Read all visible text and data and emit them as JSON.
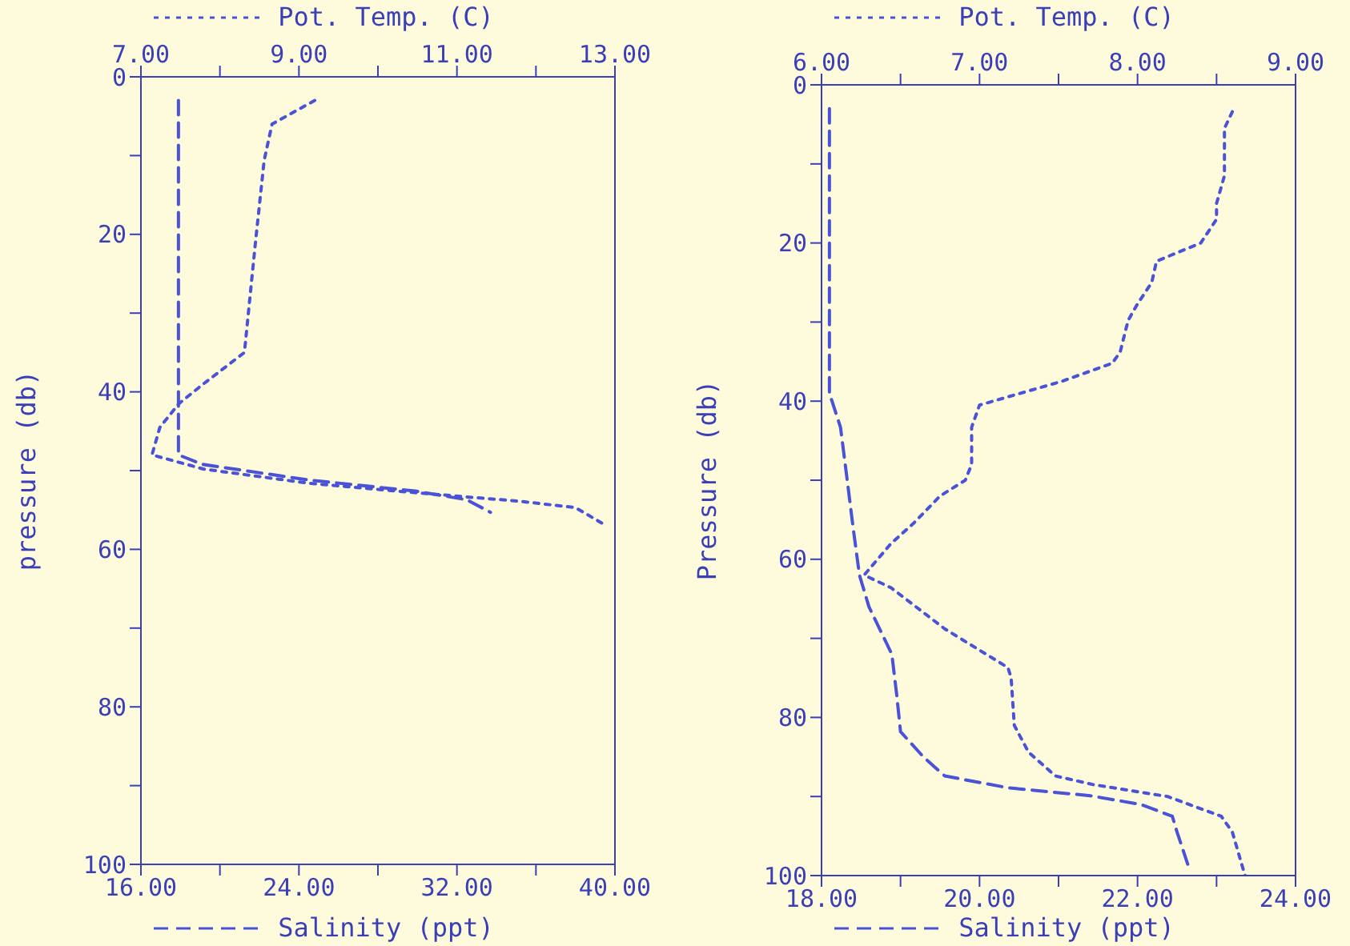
{
  "chart_data": [
    {
      "type": "line",
      "xlabel": "Salinity (ppt)",
      "x2label": "Pot. Temp. (C)",
      "ylabel": "pressure (db)",
      "xlim": [
        16,
        40
      ],
      "xticks": [
        {
          "value": 16,
          "label": "16.00"
        },
        {
          "value": 20,
          "label": null
        },
        {
          "value": 24,
          "label": "24.00"
        },
        {
          "value": 28,
          "label": null
        },
        {
          "value": 32,
          "label": "32.00"
        },
        {
          "value": 36,
          "label": null
        },
        {
          "value": 40,
          "label": "40.00"
        }
      ],
      "x2lim": [
        7,
        13
      ],
      "x2ticks": [
        {
          "value": 7,
          "label": "7.00"
        },
        {
          "value": 8,
          "label": null
        },
        {
          "value": 9,
          "label": "9.00"
        },
        {
          "value": 10,
          "label": null
        },
        {
          "value": 11,
          "label": "11.00"
        },
        {
          "value": 12,
          "label": null
        },
        {
          "value": 13,
          "label": "13.00"
        }
      ],
      "ylim": [
        100,
        0
      ],
      "yticks": [
        0,
        {
          "value": 10,
          "label": null
        },
        20,
        {
          "value": 30,
          "label": null
        },
        40,
        {
          "value": 50,
          "label": null
        },
        60,
        {
          "value": 70,
          "label": null
        },
        80,
        {
          "value": 90,
          "label": null
        },
        100
      ],
      "marker": "none",
      "series": [
        {
          "color": "#4a52d6",
          "axis": "x2",
          "line_style": "dotted",
          "x": [
            9.2,
            8.66,
            8.56,
            8.45,
            8.35,
            8.31,
            7.79,
            7.48,
            7.24,
            7.14,
            7.79,
            9.12,
            10.47,
            11.8,
            12.5,
            12.84
          ],
          "values": [
            3,
            6,
            10.6,
            21,
            31,
            35,
            39,
            41.5,
            44.5,
            48,
            49.8,
            51.6,
            52.8,
            53.9,
            54.7,
            56.7
          ]
        },
        {
          "color": "#4a52d6",
          "line_style": "dashed",
          "x": [
            17.9,
            17.9,
            17.9,
            17.9,
            19.1,
            24.5,
            29.9,
            32.5,
            33.7
          ],
          "values": [
            3,
            20,
            40,
            48,
            49.2,
            51.2,
            52.6,
            53.7,
            55.3
          ]
        }
      ]
    },
    {
      "type": "line",
      "xlabel": "Salinity (ppt)",
      "x2label": "Pot. Temp. (C)",
      "ylabel": "Pressure (db)",
      "xlim": [
        18,
        24
      ],
      "xticks": [
        {
          "value": 18,
          "label": "18.00"
        },
        {
          "value": 19,
          "label": null
        },
        {
          "value": 20,
          "label": "20.00"
        },
        {
          "value": 21,
          "label": null
        },
        {
          "value": 22,
          "label": "22.00"
        },
        {
          "value": 23,
          "label": null
        },
        {
          "value": 24,
          "label": "24.00"
        }
      ],
      "x2lim": [
        6,
        9
      ],
      "x2ticks": [
        {
          "value": 6,
          "label": "6.00"
        },
        {
          "value": 6.5,
          "label": null
        },
        {
          "value": 7,
          "label": "7.00"
        },
        {
          "value": 7.5,
          "label": null
        },
        {
          "value": 8,
          "label": "8.00"
        },
        {
          "value": 8.5,
          "label": null
        },
        {
          "value": 9,
          "label": "9.00"
        }
      ],
      "ylim": [
        100,
        0
      ],
      "yticks": [
        0,
        {
          "value": 10,
          "label": null
        },
        20,
        {
          "value": 30,
          "label": null
        },
        40,
        {
          "value": 50,
          "label": null
        },
        60,
        {
          "value": 70,
          "label": null
        },
        80,
        {
          "value": 90,
          "label": null
        },
        100
      ],
      "marker": "none",
      "series": [
        {
          "color": "#4a52d6",
          "axis": "x2",
          "line_style": "dotted",
          "x": [
            8.6,
            8.55,
            8.55,
            8.5,
            8.5,
            8.4,
            8.12,
            8.09,
            8.0,
            7.94,
            7.89,
            7.84,
            7.52,
            7.0,
            6.95,
            6.95,
            6.91,
            6.75,
            6.58,
            6.44,
            6.27,
            6.44,
            6.78,
            7.18,
            7.2,
            7.22,
            7.31,
            7.48,
            7.72,
            8.19,
            8.53,
            8.6,
            8.68
          ],
          "values": [
            3.4,
            5.5,
            11.5,
            15,
            17,
            20,
            22.3,
            25,
            27.7,
            29.8,
            33.8,
            35.2,
            37.5,
            40.5,
            43.3,
            48,
            50,
            52,
            55.5,
            58,
            62,
            63.6,
            68.8,
            73.7,
            75,
            81,
            84.4,
            87.4,
            88.5,
            90,
            92.5,
            94.5,
            100
          ]
        },
        {
          "color": "#4a52d6",
          "line_style": "dashed",
          "x": [
            18.1,
            18.1,
            18.24,
            18.3,
            18.4,
            18.48,
            18.6,
            18.89,
            18.95,
            19.0,
            19.29,
            19.56,
            20.36,
            21.4,
            22.04,
            22.44,
            22.5,
            22.65
          ],
          "values": [
            3,
            39,
            43.3,
            48,
            56,
            62,
            66,
            72,
            77,
            81.8,
            85,
            87.4,
            88.9,
            89.9,
            91,
            92.5,
            94.5,
            99
          ]
        }
      ]
    }
  ]
}
